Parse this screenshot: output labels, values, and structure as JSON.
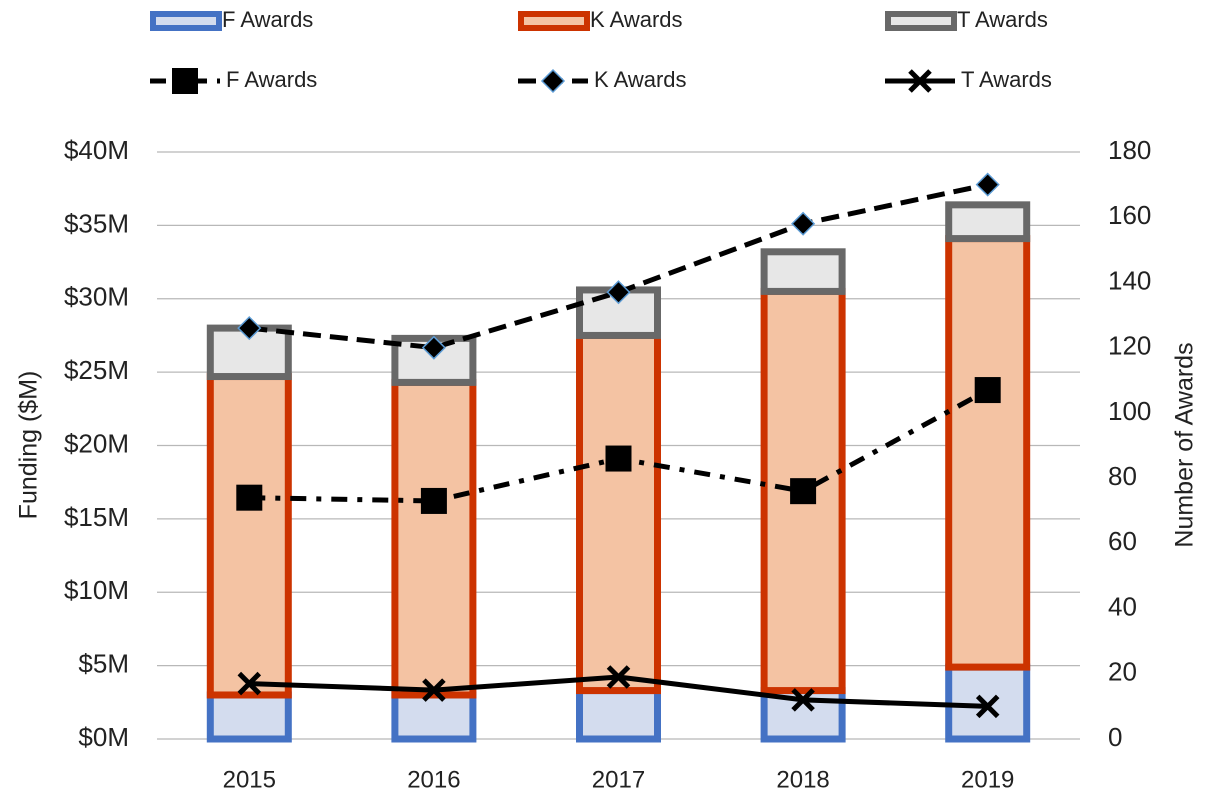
{
  "chart_data": {
    "type": "bar_line",
    "categories": [
      "2015",
      "2016",
      "2017",
      "2018",
      "2019"
    ],
    "series": [
      {
        "name": "F Awards",
        "type": "bar",
        "color": "#4472c4",
        "fill": "#d3dcee",
        "values": [
          3.0,
          3.0,
          3.3,
          3.3,
          4.9
        ]
      },
      {
        "name": "K Awards",
        "type": "bar",
        "color": "#cc3300",
        "fill": "#f4c3a3",
        "values": [
          21.7,
          21.3,
          24.2,
          27.2,
          29.2
        ]
      },
      {
        "name": "T Awards",
        "type": "bar",
        "color": "#686868",
        "fill": "#e7e7e7",
        "values": [
          3.3,
          3.0,
          3.1,
          2.7,
          2.3
        ]
      },
      {
        "name": "F Awards",
        "type": "line",
        "axis": "y2",
        "color": "#000000",
        "line_style": "dashdot",
        "marker": "square",
        "values": [
          74,
          73,
          86,
          76,
          107
        ]
      },
      {
        "name": "K Awards",
        "type": "line",
        "axis": "y2",
        "color": "#000000",
        "line_style": "dashed",
        "marker": "diamond",
        "values": [
          126,
          120,
          137,
          158,
          170
        ]
      },
      {
        "name": "T Awards",
        "type": "line",
        "axis": "y2",
        "color": "#000000",
        "line_style": "solid",
        "marker": "x",
        "values": [
          17,
          15,
          19,
          12,
          10
        ]
      }
    ],
    "ylabel": "Funding ($M)",
    "y2label": "Number of Awards",
    "ylim": [
      0,
      40
    ],
    "yticks": [
      {
        "value": 0,
        "label": "$0M"
      },
      {
        "value": 5,
        "label": "$5M"
      },
      {
        "value": 10,
        "label": "$10M"
      },
      {
        "value": 15,
        "label": "$15M"
      },
      {
        "value": 20,
        "label": "$20M"
      },
      {
        "value": 25,
        "label": "$25M"
      },
      {
        "value": 30,
        "label": "$30M"
      },
      {
        "value": 35,
        "label": "$35M"
      },
      {
        "value": 40,
        "label": "$40M"
      }
    ],
    "y2lim": [
      0,
      180
    ],
    "y2ticks": [
      0,
      20,
      40,
      60,
      80,
      100,
      120,
      140,
      160,
      180
    ],
    "grid": true,
    "legend": "top"
  }
}
